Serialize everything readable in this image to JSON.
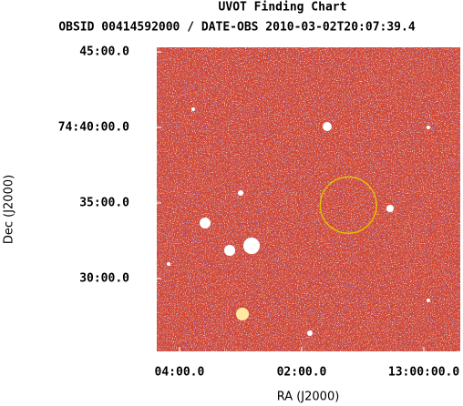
{
  "chart_data": {
    "type": "image",
    "title": "UVOT Finding Chart",
    "subtitle": "OBSID 00414592000 / DATE-OBS 2010-03-02T20:07:39.4",
    "xlabel": "RA (J2000)",
    "ylabel": "Dec (J2000)",
    "xlim": [
      196.093,
      194.851
    ],
    "ylim": [
      74.4197,
      74.755
    ],
    "xticks": [
      {
        "value": 196.0,
        "label": "04:00.0"
      },
      {
        "value": 195.5,
        "label": "02:00.0"
      },
      {
        "value": 195.0,
        "label": "13:00:00.0"
      }
    ],
    "yticks": [
      {
        "value": 74.5,
        "label": "30:00.0"
      },
      {
        "value": 74.5833,
        "label": "35:00.0"
      },
      {
        "value": 74.6667,
        "label": "74:40:00.0"
      },
      {
        "value": 74.75,
        "label": "45:00.0"
      }
    ],
    "region": {
      "x": 195.309,
      "y": 74.581,
      "radius": 0.031,
      "color": "#e0c000"
    }
  }
}
